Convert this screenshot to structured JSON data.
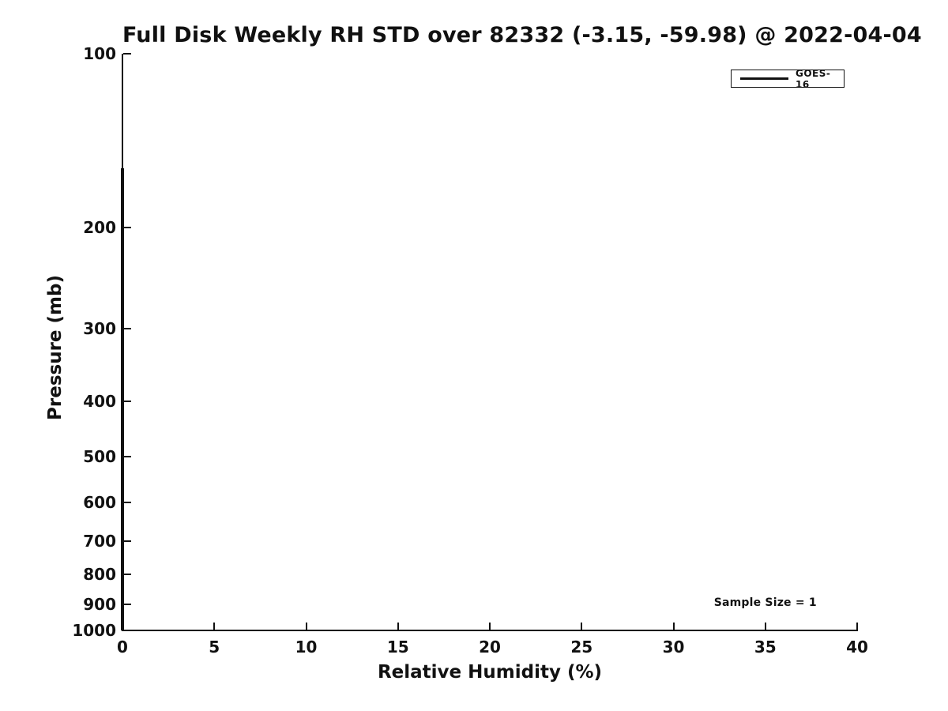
{
  "page": {
    "background": "#ffffff",
    "text_color": "#111111"
  },
  "chart_data": {
    "type": "line",
    "title": "Full Disk Weekly RH STD over 82332 (-3.15, -59.98) @ 2022-04-04",
    "xlabel": "Relative Humidity (%)",
    "ylabel": "Pressure (mb)",
    "xlim": [
      0,
      40
    ],
    "xticks": [
      0,
      5,
      10,
      15,
      20,
      25,
      30,
      35,
      40
    ],
    "ylim": [
      100,
      1000
    ],
    "yscale": "log",
    "y_inverted": true,
    "yticks": [
      100,
      200,
      300,
      400,
      500,
      600,
      700,
      800,
      900,
      1000
    ],
    "grid": false,
    "axis_color": "#111111",
    "legend": {
      "position": "upper right",
      "entries": [
        {
          "label": "GOES-16",
          "color": "#111111"
        }
      ]
    },
    "annotations": [
      {
        "text": "Sample Size = 1",
        "x": 35,
        "y": 900
      }
    ],
    "series": [
      {
        "name": "GOES-16",
        "color": "#111111",
        "line_width": 4,
        "x": [
          0,
          0
        ],
        "y": [
          158,
          1000
        ]
      }
    ]
  }
}
